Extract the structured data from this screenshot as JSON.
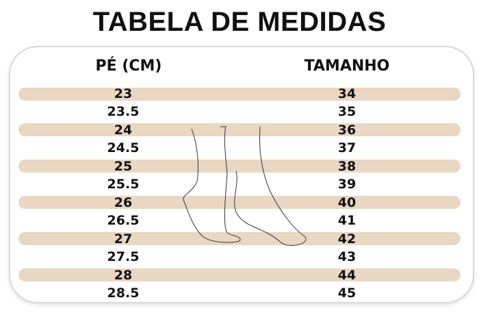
{
  "title": "TABELA DE MEDIDAS",
  "headers": {
    "foot_cm": "PÉ (CM)",
    "size": "TAMANHO"
  },
  "stripe_color": "#e8d7c2",
  "rows": [
    {
      "cm": "23",
      "size": "34"
    },
    {
      "cm": "23.5",
      "size": "35"
    },
    {
      "cm": "24",
      "size": "36"
    },
    {
      "cm": "24.5",
      "size": "37"
    },
    {
      "cm": "25",
      "size": "38"
    },
    {
      "cm": "25.5",
      "size": "39"
    },
    {
      "cm": "26",
      "size": "40"
    },
    {
      "cm": "26.5",
      "size": "41"
    },
    {
      "cm": "27",
      "size": "42"
    },
    {
      "cm": "27.5",
      "size": "43"
    },
    {
      "cm": "28",
      "size": "44"
    },
    {
      "cm": "28.5",
      "size": "45"
    }
  ]
}
